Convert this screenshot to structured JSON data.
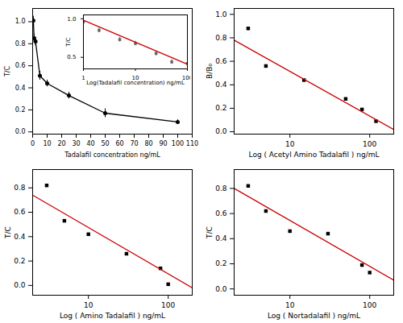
{
  "chart_data": [
    {
      "type": "line",
      "xlabel": "Tadalafil concentration ng/mL",
      "ylabel": "T/C",
      "xlim": [
        0,
        110
      ],
      "ylim": [
        -0.02,
        1.12
      ],
      "xticks": [
        0,
        10,
        20,
        30,
        40,
        50,
        60,
        70,
        80,
        90,
        100,
        110
      ],
      "yticks": [
        {
          "value": 0.0,
          "label": "0.0"
        },
        0.2,
        0.4,
        0.6,
        0.8,
        {
          "value": 1.0,
          "label": "1.0"
        }
      ],
      "series": [
        {
          "type": "line",
          "marker": "circle",
          "color": "black",
          "x": [
            0.5,
            1,
            2,
            5,
            10,
            25,
            50,
            100
          ],
          "values": [
            1.01,
            0.85,
            0.82,
            0.51,
            0.44,
            0.33,
            0.17,
            0.09
          ],
          "yerr": [
            0.04,
            0.04,
            0.04,
            0.04,
            0.03,
            0.03,
            0.04,
            0.02
          ]
        }
      ]
    },
    {
      "type": "scatter",
      "log": "x",
      "xlabel": "Log(Tadalafil concentration) ng/mL",
      "ylabel": "T/C",
      "xlim": [
        1,
        100
      ],
      "ylim": [
        0.35,
        1.05
      ],
      "xticks": [
        1,
        10,
        100
      ],
      "yticks": [
        0.5,
        {
          "value": 1.0,
          "label": "1.0"
        }
      ],
      "series": [
        {
          "type": "scatter",
          "marker": "square",
          "color": "#666666",
          "x": [
            1,
            2,
            5,
            10,
            25,
            50,
            100
          ],
          "values": [
            0.96,
            0.85,
            0.73,
            0.68,
            0.55,
            0.44,
            0.42
          ],
          "yerr": [
            0.03,
            0.03,
            0.03,
            0.03,
            0.03,
            0.03,
            0.03
          ]
        },
        {
          "type": "line",
          "color": "#cc0000",
          "x": [
            1,
            100
          ],
          "values": [
            0.98,
            0.41
          ]
        }
      ]
    },
    {
      "type": "scatter",
      "log": "x",
      "xlabel": "Log ( Acetyl Amino Tadalafil ) ng/mL",
      "ylabel": "B/B₀",
      "xlim": [
        2,
        200
      ],
      "ylim": [
        -0.02,
        1.05
      ],
      "xticks": [
        10,
        100
      ],
      "yticks": [
        {
          "value": 0.0,
          "label": "0.0"
        },
        0.2,
        0.4,
        0.6,
        0.8,
        {
          "value": 1.0,
          "label": "1.0"
        }
      ],
      "series": [
        {
          "type": "scatter",
          "marker": "square",
          "color": "black",
          "x": [
            3,
            5,
            15,
            50,
            80,
            120
          ],
          "values": [
            0.88,
            0.56,
            0.44,
            0.28,
            0.19,
            0.09
          ]
        },
        {
          "type": "line",
          "color": "#cc0000",
          "x": [
            2,
            200
          ],
          "values": [
            0.78,
            0.02
          ]
        }
      ]
    },
    {
      "type": "scatter",
      "log": "x",
      "xlabel": "Log ( Amino Tadalafil ) ng/mL",
      "ylabel": "T/C",
      "xlim": [
        2,
        200
      ],
      "ylim": [
        -0.08,
        0.95
      ],
      "xticks": [
        10,
        100
      ],
      "yticks": [
        {
          "value": 0.0,
          "label": "0.0"
        },
        0.2,
        0.4,
        0.6,
        0.8
      ],
      "series": [
        {
          "type": "scatter",
          "marker": "square",
          "color": "black",
          "x": [
            3,
            5,
            10,
            30,
            80,
            100
          ],
          "values": [
            0.82,
            0.53,
            0.42,
            0.26,
            0.14,
            0.01
          ]
        },
        {
          "type": "line",
          "color": "#cc0000",
          "x": [
            2,
            200
          ],
          "values": [
            0.74,
            -0.02
          ]
        }
      ]
    },
    {
      "type": "scatter",
      "log": "x",
      "xlabel": "Log ( Nortadalafil ) ng/mL",
      "ylabel": "T/C",
      "xlim": [
        2,
        200
      ],
      "ylim": [
        -0.05,
        0.95
      ],
      "xticks": [
        10,
        100
      ],
      "yticks": [
        {
          "value": 0.0,
          "label": "0.0"
        },
        0.2,
        0.4,
        0.6,
        0.8
      ],
      "series": [
        {
          "type": "scatter",
          "marker": "square",
          "color": "black",
          "x": [
            3,
            5,
            10,
            30,
            80,
            100
          ],
          "values": [
            0.82,
            0.62,
            0.46,
            0.44,
            0.19,
            0.13
          ]
        },
        {
          "type": "line",
          "color": "#cc0000",
          "x": [
            2,
            200
          ],
          "values": [
            0.8,
            0.07
          ]
        }
      ]
    }
  ]
}
